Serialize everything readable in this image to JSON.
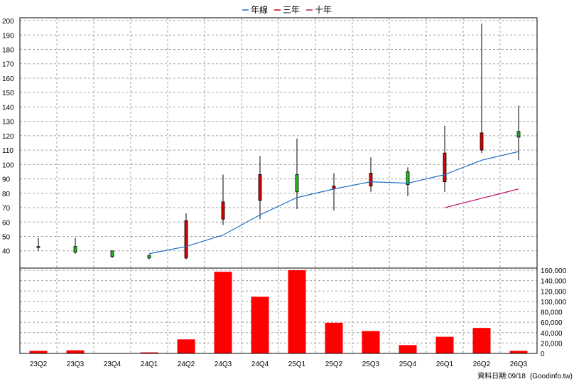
{
  "chart_data": {
    "type": "candlestick",
    "legend": {
      "placement": "top-center",
      "entries": [
        {
          "name": "年線",
          "color": "#1f6fc4"
        },
        {
          "name": "三年",
          "color": "#cc0000"
        },
        {
          "name": "十年",
          "color": "#c0186c"
        }
      ]
    },
    "categories": [
      "23Q2",
      "23Q3",
      "23Q4",
      "24Q1",
      "24Q2",
      "24Q3",
      "24Q4",
      "25Q1",
      "25Q2",
      "25Q3",
      "25Q4",
      "26Q1",
      "26Q2",
      "26Q3"
    ],
    "price_axis": {
      "ylim": [
        28,
        202
      ],
      "ticks": [
        40,
        50,
        60,
        70,
        80,
        90,
        100,
        110,
        120,
        130,
        140,
        150,
        160,
        170,
        180,
        190,
        200
      ]
    },
    "candles": [
      {
        "q": "23Q2",
        "open": 43,
        "high": 49,
        "low": 40,
        "close": 43
      },
      {
        "q": "23Q3",
        "open": 39,
        "high": 49,
        "low": 38,
        "close": 43
      },
      {
        "q": "23Q4",
        "open": 36,
        "high": 40,
        "low": 35,
        "close": 40
      },
      {
        "q": "24Q1",
        "open": 35,
        "high": 37,
        "low": 34,
        "close": 37
      },
      {
        "q": "24Q2",
        "open": 61,
        "high": 66,
        "low": 34,
        "close": 35
      },
      {
        "q": "24Q3",
        "open": 74,
        "high": 93,
        "low": 58,
        "close": 62
      },
      {
        "q": "24Q4",
        "open": 93,
        "high": 106,
        "low": 62,
        "close": 75
      },
      {
        "q": "25Q1",
        "open": 81,
        "high": 118,
        "low": 69,
        "close": 93
      },
      {
        "q": "25Q2",
        "open": 85,
        "high": 94,
        "low": 68,
        "close": 83
      },
      {
        "q": "25Q3",
        "open": 94,
        "high": 105,
        "low": 81,
        "close": 85
      },
      {
        "q": "25Q4",
        "open": 86,
        "high": 98,
        "low": 78,
        "close": 95
      },
      {
        "q": "26Q1",
        "open": 108,
        "high": 127,
        "low": 81,
        "close": 88
      },
      {
        "q": "26Q2",
        "open": 122,
        "high": 198,
        "low": 108,
        "close": 110
      },
      {
        "q": "26Q3",
        "open": 119,
        "high": 141,
        "low": 103,
        "close": 123
      }
    ],
    "lines": [
      {
        "name": "年線",
        "color": "#1f6fc4",
        "points": [
          [
            "24Q1",
            38
          ],
          [
            "24Q2",
            43
          ],
          [
            "24Q3",
            51
          ],
          [
            "24Q4",
            65
          ],
          [
            "25Q1",
            77
          ],
          [
            "25Q2",
            83
          ],
          [
            "25Q3",
            88
          ],
          [
            "25Q4",
            87
          ],
          [
            "26Q1",
            93
          ],
          [
            "26Q2",
            103
          ],
          [
            "26Q3",
            109
          ]
        ]
      },
      {
        "name": "十年",
        "color": "#c0186c",
        "points": [
          [
            "26Q1",
            70
          ],
          [
            "26Q3",
            83
          ]
        ]
      }
    ],
    "volume_axis": {
      "ylim": [
        0,
        160000
      ],
      "ticks": [
        "0",
        "20,000",
        "40,000",
        "60,000",
        "80,000",
        "100,000",
        "120,000",
        "140,000",
        "160,000"
      ]
    },
    "volume": [
      5000,
      6000,
      500,
      2000,
      27000,
      157000,
      109000,
      160000,
      59000,
      43000,
      16000,
      32000,
      49000,
      5000
    ],
    "up_color": "#22bb22",
    "down_color": "#dd0000",
    "volume_color": "#ff0000",
    "grid": true
  },
  "footer": {
    "date_label": "資料日期:",
    "date_value": "09/18",
    "source": "(Goodinfo.tw)"
  }
}
